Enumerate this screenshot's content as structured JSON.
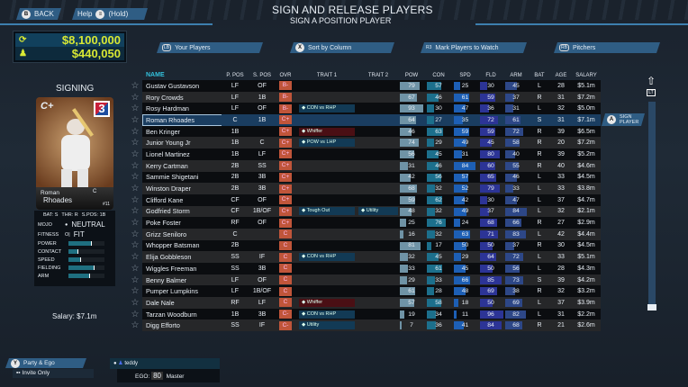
{
  "header": {
    "title": "SIGN AND RELEASE PLAYERS",
    "subtitle": "SIGN A POSITION PLAYER",
    "back": "BACK",
    "back_key": "B",
    "help": "Help",
    "help_hold": "(Hold)"
  },
  "budget": {
    "total": "$8,100,000",
    "remaining": "$440,050"
  },
  "tabs": [
    {
      "label": "Your Players",
      "key": "LB"
    },
    {
      "label": "Sort by Column",
      "key": "X"
    },
    {
      "label": "Mark Players to Watch",
      "key": "R3"
    },
    {
      "label": "Pitchers",
      "key": "RB"
    }
  ],
  "signing": {
    "title": "SIGNING",
    "grade": "C+",
    "level": "3",
    "first": "Roman",
    "last": "Rhoades",
    "pos": "C",
    "number": "#11",
    "bat": "BAT: S",
    "thr": "THR: R",
    "spos": "S.POS: 1B",
    "mojo_label": "MOJO",
    "mojo": "NEUTRAL",
    "fitness_label": "FITNESS",
    "fitness": "FIT",
    "skills": [
      {
        "label": "POWER",
        "value": 64
      },
      {
        "label": "CONTACT",
        "value": 27
      },
      {
        "label": "SPEED",
        "value": 35
      },
      {
        "label": "FIELDING",
        "value": 72
      },
      {
        "label": "ARM",
        "value": 61
      }
    ],
    "salary": "Salary: $7.1m"
  },
  "columns": [
    "NAME",
    "P. POS",
    "S. POS",
    "OVR",
    "TRAIT 1",
    "TRAIT 2",
    "POW",
    "CON",
    "SPD",
    "FLD",
    "ARM",
    "BAT",
    "AGE",
    "SALARY"
  ],
  "selected_index": 3,
  "rows": [
    [
      "Gustav Gustavson",
      "LF",
      "OF",
      "B-",
      "",
      "",
      79,
      57,
      25,
      30,
      45,
      "L",
      "28",
      "$5.1m"
    ],
    [
      "Rory Crowds",
      "LF",
      "1B",
      "B-",
      "",
      "",
      67,
      46,
      61,
      59,
      37,
      "R",
      "31",
      "$7.2m"
    ],
    [
      "Rosy Hardman",
      "LF",
      "OF",
      "B-",
      "CON vs RHP",
      "",
      93,
      30,
      47,
      36,
      31,
      "L",
      "32",
      "$5.0m"
    ],
    [
      "Roman Rhoades",
      "C",
      "1B",
      "C+",
      "",
      "",
      64,
      27,
      35,
      72,
      61,
      "S",
      "31",
      "$7.1m"
    ],
    [
      "Ben Kringer",
      "1B",
      "",
      "C+",
      "Whiffer",
      "",
      46,
      63,
      59,
      59,
      72,
      "R",
      "39",
      "$6.5m"
    ],
    [
      "Junior Young Jr",
      "1B",
      "C",
      "C+",
      "POW vs LHP",
      "",
      74,
      29,
      49,
      45,
      58,
      "R",
      "20",
      "$7.2m"
    ],
    [
      "Lionel Martinez",
      "1B",
      "LF",
      "C+",
      "",
      "",
      56,
      45,
      31,
      80,
      40,
      "R",
      "39",
      "$5.2m"
    ],
    [
      "Kerry Cartman",
      "2B",
      "SS",
      "C+",
      "",
      "",
      31,
      46,
      84,
      60,
      55,
      "R",
      "40",
      "$4.6m"
    ],
    [
      "Sammie Shigetani",
      "2B",
      "3B",
      "C+",
      "",
      "",
      42,
      56,
      57,
      65,
      46,
      "L",
      "33",
      "$4.5m"
    ],
    [
      "Winston Draper",
      "2B",
      "3B",
      "C+",
      "",
      "",
      68,
      32,
      52,
      79,
      33,
      "L",
      "33",
      "$3.8m"
    ],
    [
      "Clifford Kane",
      "CF",
      "OF",
      "C+",
      "",
      "",
      59,
      62,
      42,
      30,
      47,
      "L",
      "37",
      "$4.7m"
    ],
    [
      "Godfried Storm",
      "CF",
      "1B/OF",
      "C+",
      "Tough Out",
      "Utility",
      48,
      32,
      49,
      37,
      84,
      "L",
      "32",
      "$2.1m"
    ],
    [
      "Poke Foster",
      "RF",
      "OF",
      "C+",
      "",
      "",
      25,
      76,
      24,
      68,
      66,
      "R",
      "27",
      "$2.9m"
    ],
    [
      "Grizz Seniloro",
      "C",
      "",
      "C",
      "",
      "",
      16,
      32,
      63,
      71,
      83,
      "L",
      "42",
      "$4.4m"
    ],
    [
      "Whopper Batsman",
      "2B",
      "",
      "C",
      "",
      "",
      81,
      17,
      50,
      50,
      37,
      "R",
      "30",
      "$4.5m"
    ],
    [
      "Elija Gobbleson",
      "SS",
      "IF",
      "C",
      "CON vs RHP",
      "",
      32,
      45,
      29,
      64,
      72,
      "L",
      "33",
      "$5.1m"
    ],
    [
      "Wiggles Freeman",
      "SS",
      "3B",
      "C",
      "",
      "",
      33,
      61,
      45,
      50,
      56,
      "L",
      "28",
      "$4.3m"
    ],
    [
      "Benny Balmer",
      "LF",
      "OF",
      "C",
      "",
      "",
      29,
      33,
      66,
      85,
      73,
      "S",
      "39",
      "$4.2m"
    ],
    [
      "Pumper Lumpkins",
      "LF",
      "1B/OF",
      "C",
      "",
      "",
      61,
      28,
      48,
      69,
      38,
      "R",
      "32",
      "$3.2m"
    ],
    [
      "Dale Nale",
      "RF",
      "LF",
      "C",
      "Whiffer",
      "",
      57,
      58,
      18,
      50,
      69,
      "L",
      "37",
      "$3.9m"
    ],
    [
      "Tarzan Woodburn",
      "1B",
      "3B",
      "C-",
      "CON vs RHP",
      "",
      19,
      34,
      11,
      96,
      82,
      "L",
      "31",
      "$2.2m"
    ],
    [
      "Digg Efforto",
      "SS",
      "IF",
      "C-",
      "Utility",
      "",
      7,
      36,
      41,
      84,
      68,
      "R",
      "21",
      "$2.6m"
    ]
  ],
  "negative_traits": [
    "Whiffer"
  ],
  "sign_button": {
    "label1": "SIGN",
    "label2": "PLAYER",
    "key": "A"
  },
  "scroll_key": "LT",
  "footer": {
    "party_key": "Y",
    "party": "Party & Ego",
    "invite": "Invite Only",
    "user": "teddy",
    "ego_label": "EGO:",
    "ego": "80",
    "rank": "Master"
  },
  "colors": {
    "pow": "#6f93a6",
    "con": "#1c6f8c",
    "spd": "#1d5fb5",
    "fld": "#2c3496",
    "arm": "#2d4787",
    "ovr": "#c0553a",
    "accent": "#2f5d84"
  }
}
